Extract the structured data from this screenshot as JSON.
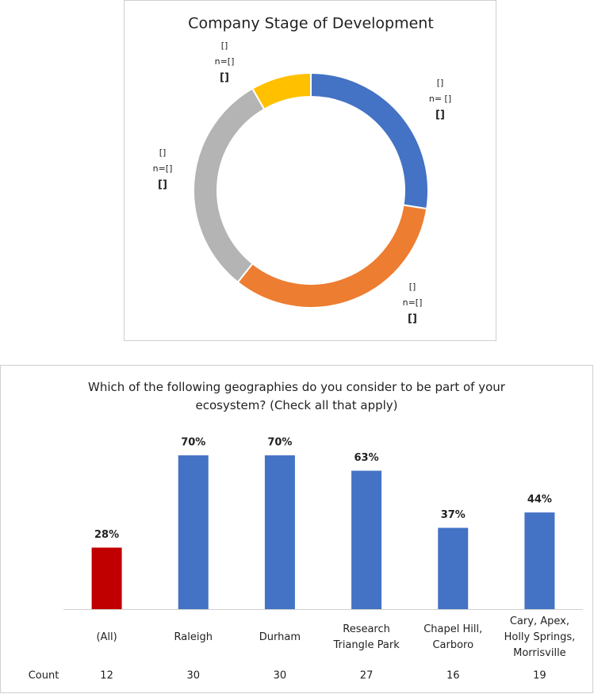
{
  "chart_data": [
    {
      "type": "pie",
      "title": "Company Stage of Development",
      "values": [
        27.5,
        33.2,
        31,
        8.3
      ],
      "colors": [
        "#4472c4",
        "#ed7d31",
        "#b4b4b4",
        "#ffc000"
      ],
      "labels": [
        [
          "[]",
          "n= []",
          "[]"
        ],
        [
          "[]",
          "n=[]",
          "[]"
        ],
        [
          "[]",
          "n=[]",
          "[]"
        ],
        [
          "[]",
          "n=[]",
          "[]"
        ]
      ]
    },
    {
      "type": "bar",
      "title": "Which of the following geographies do you consider to be part of your\necosystem? (Check all that apply)",
      "categories": [
        "(All)",
        "Raleigh",
        "Durham",
        "Research\nTriangle Park",
        "Chapel Hill,\nCarboro",
        "Cary, Apex,\nHolly Springs,\nMorrisville"
      ],
      "values": [
        28,
        70,
        70,
        63,
        37,
        44
      ],
      "value_labels": [
        "28%",
        "70%",
        "70%",
        "63%",
        "37%",
        "44%"
      ],
      "colors": [
        "#c00000",
        "#4472c4",
        "#4472c4",
        "#4472c4",
        "#4472c4",
        "#4472c4"
      ],
      "count_label": "Count",
      "counts": [
        12,
        30,
        30,
        27,
        16,
        19
      ]
    }
  ]
}
